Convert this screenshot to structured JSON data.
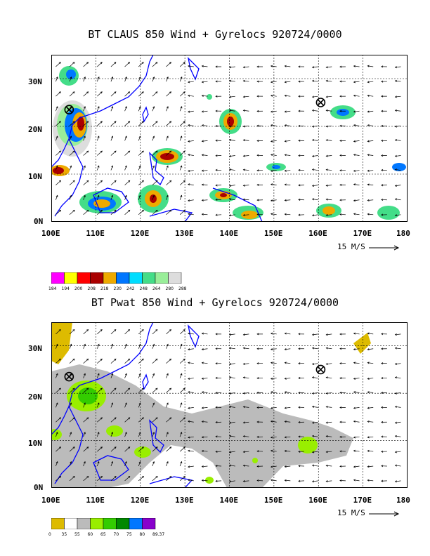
{
  "panel1": {
    "title": "BT CLAUS 850 Wind + Gyrelocs 920724/0000",
    "scale_text": "15 M/S",
    "colorbar_labels": [
      "184",
      "194",
      "200",
      "208",
      "218",
      "230",
      "242",
      "248",
      "264",
      "280",
      "288"
    ],
    "colorbar_colors": [
      "#ff00ff",
      "#ffff00",
      "#ff0000",
      "#aa0000",
      "#eeaa00",
      "#0077ff",
      "#00ddff",
      "#44dd88",
      "#99ee99",
      "#dddddd"
    ]
  },
  "panel2": {
    "title": "BT Pwat 850 Wind + Gyrelocs 920724/0000",
    "scale_text": "15 M/S",
    "colorbar_labels": [
      "0",
      "35",
      "55",
      "60",
      "65",
      "70",
      "75",
      "80",
      "89.37"
    ],
    "colorbar_colors": [
      "#ddbb00",
      "#ffffff",
      "#bbbbbb",
      "#99ee00",
      "#33cc00",
      "#008800",
      "#0077ff",
      "#8800cc"
    ]
  },
  "axes": {
    "x_labels": [
      "100E",
      "110E",
      "120E",
      "130E",
      "140E",
      "150E",
      "160E",
      "170E",
      "180"
    ],
    "y_labels": [
      "30N",
      "20N",
      "10N",
      "0N"
    ]
  },
  "gyre_locations": [
    {
      "lon": 104,
      "lat": 23.5
    },
    {
      "lon": 160.5,
      "lat": 25
    }
  ],
  "colors": {
    "coastline": "#0000ff",
    "grid": "#000000"
  }
}
